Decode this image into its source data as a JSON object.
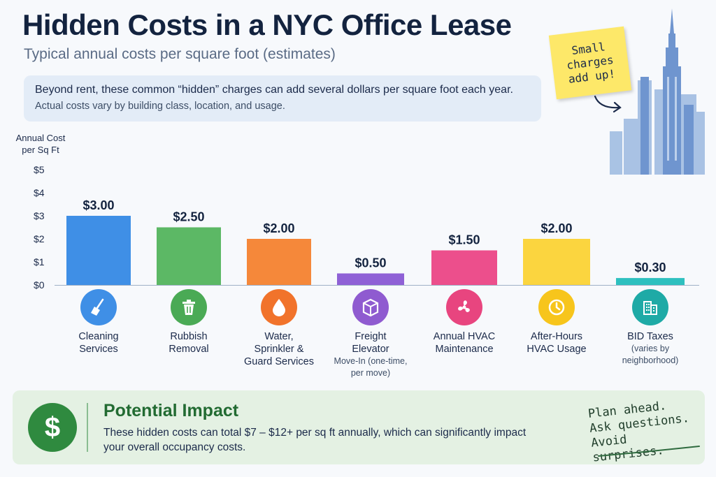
{
  "title": "Hidden Costs in a NYC Office Lease",
  "subtitle": "Typical annual costs per square foot (estimates)",
  "intro": {
    "line1": "Beyond rent, these common “hidden” charges can add several dollars per square foot each year.",
    "line2": "Actual costs vary by building class, location, and usage."
  },
  "sticky_note": "Small charges add up!",
  "chart_data": {
    "type": "bar",
    "ylabel": "Annual Cost per Sq Ft",
    "ylim": [
      0,
      5
    ],
    "yticks": [
      "$0",
      "$1",
      "$2",
      "$3",
      "$4",
      "$5"
    ],
    "categories": [
      "Cleaning Services",
      "Rubbish Removal",
      "Water, Sprinkler & Guard Services",
      "Freight Elevator",
      "Annual HVAC Maintenance",
      "After-Hours HVAC Usage",
      "BID Taxes"
    ],
    "values": [
      3.0,
      2.5,
      2.0,
      0.5,
      1.5,
      2.0,
      0.3
    ],
    "data_labels": [
      "$3.00",
      "$2.50",
      "$2.00",
      "$0.50",
      "$1.50",
      "$2.00",
      "$0.30"
    ],
    "colors": [
      "#3f8fe6",
      "#5cb865",
      "#f5883a",
      "#8f61d6",
      "#ec4f8c",
      "#fbd53f",
      "#2ec0bf"
    ],
    "grid": false,
    "legend": "none"
  },
  "categories": [
    {
      "line1": "Cleaning",
      "line2": "Services",
      "note": "",
      "icon": "broom-icon",
      "color": "#3f8fe6"
    },
    {
      "line1": "Rubbish",
      "line2": "Removal",
      "note": "",
      "icon": "trash-icon",
      "color": "#4aaa55"
    },
    {
      "line1": "Water,",
      "line2": "Sprinkler &",
      "line3": "Guard Services",
      "note": "",
      "icon": "water-drop-icon",
      "color": "#f1732b"
    },
    {
      "line1": "Freight",
      "line2": "Elevator",
      "note": "Move-In (one-time, per move)",
      "icon": "box-icon",
      "color": "#8f5bd0"
    },
    {
      "line1": "Annual HVAC",
      "line2": "Maintenance",
      "note": "",
      "icon": "fan-icon",
      "color": "#e8457f"
    },
    {
      "line1": "After-Hours",
      "line2": "HVAC Usage",
      "note": "",
      "icon": "clock-icon",
      "color": "#f7c51c"
    },
    {
      "line1": "BID Taxes",
      "line2": "",
      "note": "(varies by neighborhood)",
      "icon": "buildings-icon",
      "color": "#1eaaa6"
    }
  ],
  "impact": {
    "heading": "Potential Impact",
    "text": "These hidden costs can total $7 – $12+ per sq ft annually, which can significantly impact your overall occupancy costs.",
    "symbol": "$",
    "tagline": [
      "Plan ahead.",
      "Ask questions.",
      "Avoid surprises."
    ]
  }
}
